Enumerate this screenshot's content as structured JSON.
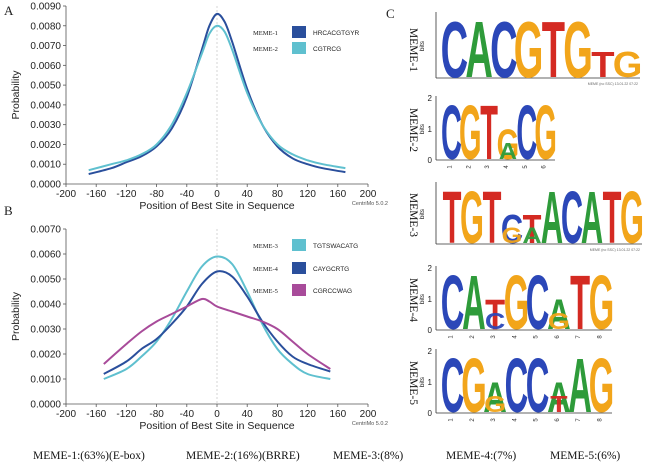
{
  "panel_labels": [
    "A",
    "B",
    "C"
  ],
  "chart_data": [
    {
      "type": "line",
      "panel": "A",
      "ylabel": "Probability",
      "xlabel": "Position of Best Site in Sequence",
      "xlim": [
        -200,
        200
      ],
      "ylim": [
        0,
        0.009
      ],
      "xticks": [
        -200,
        -160,
        -120,
        -80,
        -40,
        0,
        40,
        80,
        120,
        160,
        200
      ],
      "yticks": [
        0,
        0.001,
        0.002,
        0.003,
        0.004,
        0.005,
        0.006,
        0.007,
        0.008,
        0.009
      ],
      "ytick_labels": [
        "0.0000",
        "0.0010",
        "0.0020",
        "0.0030",
        "0.0040",
        "0.0050",
        "0.0060",
        "0.0070",
        "0.0080",
        "0.0090"
      ],
      "credit": "CentriMo 5.0.2",
      "series": [
        {
          "name": "MEME-1",
          "motif": "HRCACGTGYR",
          "color": "#2a4f9c",
          "x": [
            -170,
            -140,
            -120,
            -100,
            -80,
            -60,
            -40,
            -20,
            -10,
            0,
            10,
            20,
            40,
            60,
            80,
            100,
            120,
            140,
            170
          ],
          "y": [
            0.0005,
            0.0008,
            0.0011,
            0.0014,
            0.0019,
            0.0028,
            0.0044,
            0.0068,
            0.008,
            0.0086,
            0.0082,
            0.0072,
            0.0048,
            0.003,
            0.0019,
            0.0013,
            0.001,
            0.0008,
            0.0006
          ]
        },
        {
          "name": "MEME-2",
          "motif": "CGTRCG",
          "color": "#5fc0cf",
          "x": [
            -170,
            -140,
            -120,
            -100,
            -80,
            -60,
            -40,
            -20,
            -10,
            0,
            10,
            20,
            40,
            60,
            80,
            100,
            120,
            140,
            170
          ],
          "y": [
            0.0007,
            0.001,
            0.0012,
            0.0015,
            0.002,
            0.003,
            0.0046,
            0.0066,
            0.0076,
            0.008,
            0.0077,
            0.0068,
            0.0046,
            0.003,
            0.002,
            0.0015,
            0.0012,
            0.001,
            0.0008
          ]
        }
      ]
    },
    {
      "type": "line",
      "panel": "B",
      "ylabel": "Probability",
      "xlabel": "Position of Best Site in Sequence",
      "xlim": [
        -200,
        200
      ],
      "ylim": [
        0,
        0.007
      ],
      "xticks": [
        -200,
        -160,
        -120,
        -80,
        -40,
        0,
        40,
        80,
        120,
        160,
        200
      ],
      "yticks": [
        0,
        0.001,
        0.002,
        0.003,
        0.004,
        0.005,
        0.006,
        0.007
      ],
      "ytick_labels": [
        "0.0000",
        "0.0010",
        "0.0020",
        "0.0030",
        "0.0040",
        "0.0050",
        "0.0060",
        "0.0070"
      ],
      "credit": "CentriMo 5.0.2",
      "series": [
        {
          "name": "MEME-3",
          "motif": "TGTSWACATG",
          "color": "#5fc0cf",
          "x": [
            -150,
            -120,
            -100,
            -80,
            -60,
            -40,
            -20,
            0,
            20,
            40,
            60,
            80,
            100,
            120,
            150
          ],
          "y": [
            0.001,
            0.0014,
            0.0019,
            0.0025,
            0.0034,
            0.0045,
            0.0055,
            0.0059,
            0.0056,
            0.0045,
            0.0032,
            0.0022,
            0.0016,
            0.0012,
            0.001
          ]
        },
        {
          "name": "MEME-4",
          "motif": "CAYGCRTG",
          "color": "#2a4f9c",
          "x": [
            -150,
            -120,
            -100,
            -80,
            -60,
            -40,
            -20,
            0,
            20,
            40,
            60,
            80,
            100,
            120,
            150
          ],
          "y": [
            0.0012,
            0.0017,
            0.0022,
            0.0026,
            0.0032,
            0.0039,
            0.0048,
            0.0053,
            0.0051,
            0.0043,
            0.0033,
            0.0025,
            0.0019,
            0.0016,
            0.0013
          ]
        },
        {
          "name": "MEME-5",
          "motif": "CGRCCWAG",
          "color": "#a84b9a",
          "x": [
            -150,
            -120,
            -100,
            -80,
            -60,
            -40,
            -20,
            -10,
            0,
            20,
            40,
            60,
            80,
            100,
            120,
            150
          ],
          "y": [
            0.0016,
            0.0024,
            0.0029,
            0.0033,
            0.0036,
            0.0039,
            0.0042,
            0.0041,
            0.0039,
            0.0037,
            0.0035,
            0.0033,
            0.003,
            0.0025,
            0.002,
            0.0014
          ]
        }
      ]
    }
  ],
  "logos": [
    {
      "name": "MEME-1",
      "letters": [
        "C",
        "A",
        "C",
        "G",
        "T",
        "G",
        "T",
        "G"
      ],
      "wide": true,
      "axis_label": "bits",
      "footer": "MEME (no SSC) 13.01.22 07:22"
    },
    {
      "name": "MEME-2",
      "letters": [
        "C",
        "G",
        "T",
        "G",
        "C",
        "G"
      ],
      "small": [
        "A"
      ],
      "axis_label": "bits",
      "yticks": [
        "2",
        "1",
        "0"
      ],
      "positions": [
        "1",
        "2",
        "3",
        "4",
        "5",
        "6"
      ]
    },
    {
      "name": "MEME-3",
      "letters": [
        "T",
        "G",
        "T",
        "C",
        "T",
        "A",
        "C",
        "A",
        "T",
        "G"
      ],
      "small": [
        "G",
        "A"
      ],
      "wide": true,
      "axis_label": "bits",
      "footer": "MEME (no SSC) 13.01.22 07:22"
    },
    {
      "name": "MEME-4",
      "letters": [
        "C",
        "A",
        "T",
        "G",
        "C",
        "A",
        "T",
        "G"
      ],
      "small": [
        "C",
        "G"
      ],
      "axis_label": "bits",
      "yticks": [
        "2",
        "1",
        "0"
      ],
      "positions": [
        "1",
        "2",
        "3",
        "4",
        "5",
        "6",
        "7",
        "8"
      ]
    },
    {
      "name": "MEME-5",
      "letters": [
        "C",
        "G",
        "A",
        "C",
        "C",
        "A",
        "A",
        "G"
      ],
      "small": [
        "G",
        "T"
      ],
      "axis_label": "bits",
      "yticks": [
        "2",
        "1",
        "0"
      ],
      "positions": [
        "1",
        "2",
        "3",
        "4",
        "5",
        "6",
        "7",
        "8"
      ]
    }
  ],
  "base_colors": {
    "A": "#2e9b3a",
    "C": "#2b47b8",
    "G": "#f2a51a",
    "T": "#d42a22"
  },
  "bottom_caption": [
    "MEME-1:(63%)(E-box)",
    "MEME-2:(16%)(BRRE)",
    "MEME-3:(8%)",
    "MEME-4:(7%)",
    "MEME-5:(6%)"
  ]
}
